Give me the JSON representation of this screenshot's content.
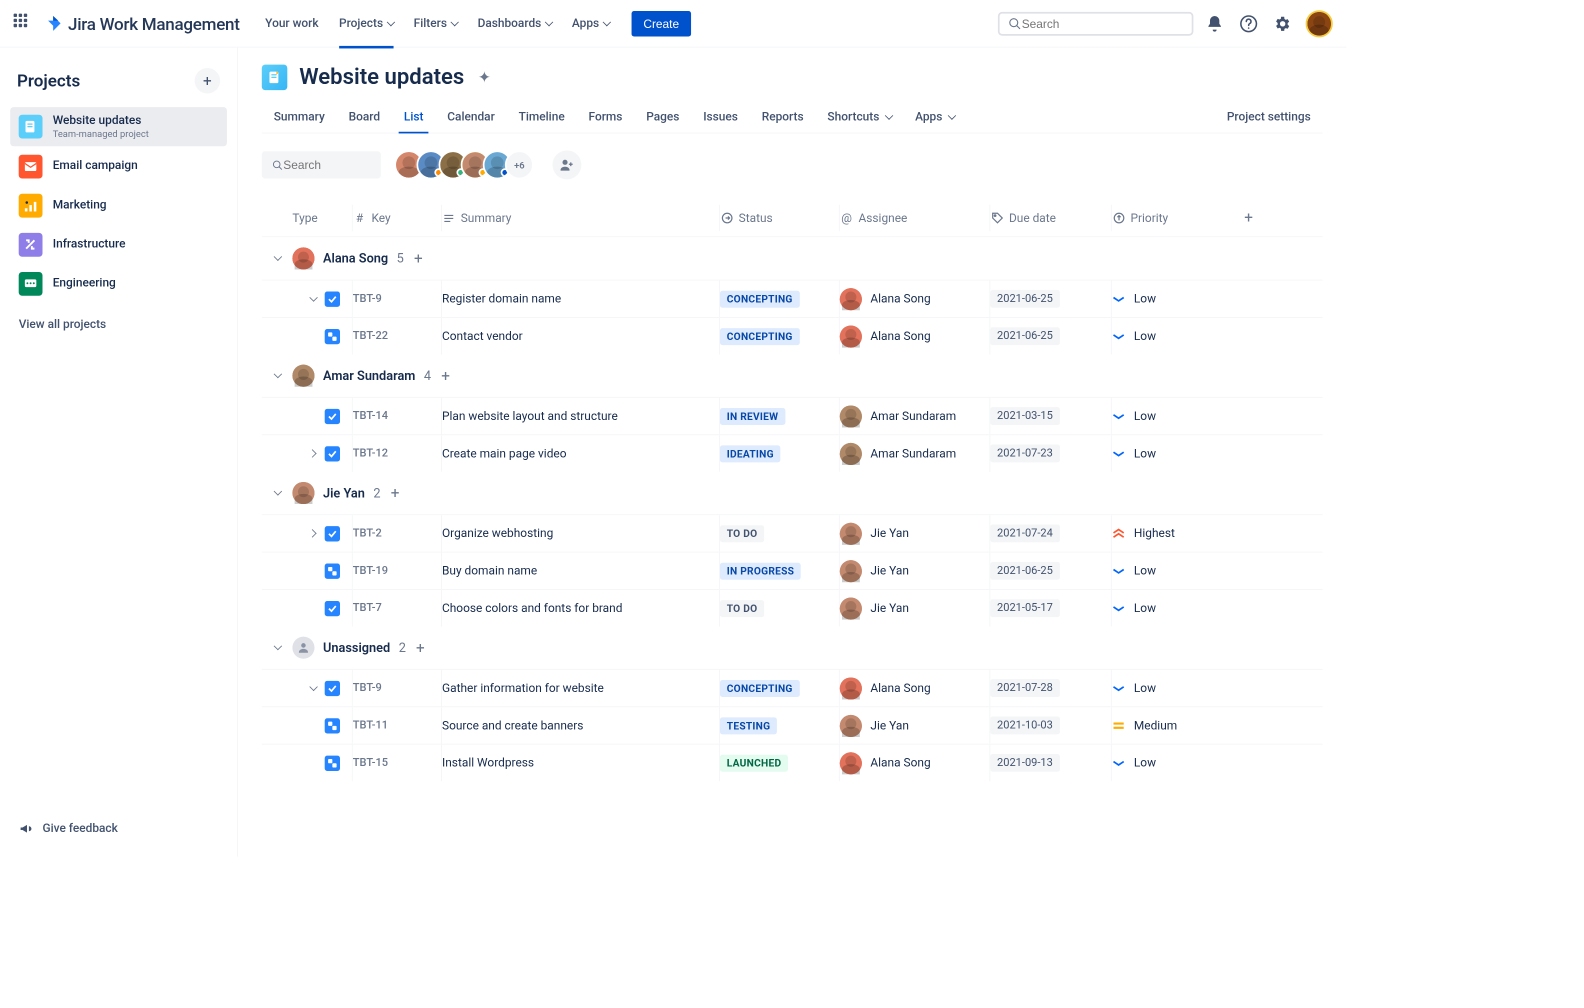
{
  "product_name": "Jira Work Management",
  "topnav": {
    "links": [
      "Your work",
      "Projects",
      "Filters",
      "Dashboards",
      "Apps"
    ],
    "create_label": "Create",
    "search_placeholder": "Search"
  },
  "sidebar": {
    "title": "Projects",
    "projects": [
      {
        "name": "Website updates",
        "sub": "Team-managed project",
        "icon_bg": "#5BCEFA",
        "active": true
      },
      {
        "name": "Email campaign",
        "icon_bg": "#FF5630"
      },
      {
        "name": "Marketing",
        "icon_bg": "#FFAB00"
      },
      {
        "name": "Infrastructure",
        "icon_bg": "#8F7EE7"
      },
      {
        "name": "Engineering",
        "icon_bg": "#00875A"
      }
    ],
    "view_all": "View all projects",
    "feedback": "Give feedback"
  },
  "page": {
    "title": "Website updates",
    "tabs": [
      "Summary",
      "Board",
      "List",
      "Calendar",
      "Timeline",
      "Forms",
      "Pages",
      "Issues",
      "Reports",
      "Shortcuts",
      "Apps",
      "Project settings"
    ],
    "active_tab": "List",
    "search_placeholder": "Search",
    "people_overflow": "+6"
  },
  "columns": {
    "type": "Type",
    "key": "Key",
    "summary": "Summary",
    "status": "Status",
    "assignee": "Assignee",
    "due": "Due date",
    "priority": "Priority"
  },
  "avatar_colors": {
    "alana": "#E2725B",
    "amar": "#B08968",
    "jie": "#C48A6F",
    "yellow": "#f4cd42"
  },
  "status_styles": {
    "CONCEPTING": {
      "bg": "#deebff",
      "color": "#0747a6"
    },
    "IN REVIEW": {
      "bg": "#deebff",
      "color": "#0747a6"
    },
    "IDEATING": {
      "bg": "#deebff",
      "color": "#0747a6"
    },
    "TO DO": {
      "bg": "#f4f5f7",
      "color": "#42526e"
    },
    "IN PROGRESS": {
      "bg": "#deebff",
      "color": "#0747a6"
    },
    "TESTING": {
      "bg": "#deebff",
      "color": "#0747a6"
    },
    "LAUNCHED": {
      "bg": "#e3fcef",
      "color": "#006644"
    }
  },
  "groups": [
    {
      "name": "Alana Song",
      "count": 5,
      "avatar": "alana",
      "rows": [
        {
          "chev": "down",
          "type": "task",
          "key": "TBT-9",
          "summary": "Register domain name",
          "status": "CONCEPTING",
          "assignee": "Alana Song",
          "avatar": "alana",
          "due": "2021-06-25",
          "priority": "Low"
        },
        {
          "chev": "",
          "type": "sub",
          "key": "TBT-22",
          "summary": "Contact vendor",
          "status": "CONCEPTING",
          "assignee": "Alana Song",
          "avatar": "alana",
          "due": "2021-06-25",
          "priority": "Low"
        }
      ]
    },
    {
      "name": "Amar Sundaram",
      "count": 4,
      "avatar": "amar",
      "rows": [
        {
          "chev": "",
          "type": "task",
          "key": "TBT-14",
          "summary": "Plan website layout and structure",
          "status": "IN REVIEW",
          "assignee": "Amar Sundaram",
          "avatar": "amar",
          "due": "2021-03-15",
          "priority": "Low"
        },
        {
          "chev": "right",
          "type": "task",
          "key": "TBT-12",
          "summary": "Create main page video",
          "status": "IDEATING",
          "assignee": "Amar Sundaram",
          "avatar": "amar",
          "due": "2021-07-23",
          "priority": "Low"
        }
      ]
    },
    {
      "name": "Jie Yan",
      "count": 2,
      "avatar": "jie",
      "rows": [
        {
          "chev": "right",
          "type": "task",
          "key": "TBT-2",
          "summary": "Organize webhosting",
          "status": "TO DO",
          "assignee": "Jie Yan",
          "avatar": "jie",
          "due": "2021-07-24",
          "priority": "Highest"
        },
        {
          "chev": "",
          "type": "sub",
          "key": "TBT-19",
          "summary": "Buy domain name",
          "status": "IN PROGRESS",
          "assignee": "Jie Yan",
          "avatar": "jie",
          "due": "2021-06-25",
          "priority": "Low"
        },
        {
          "chev": "",
          "type": "task",
          "key": "TBT-7",
          "summary": "Choose colors and fonts for brand",
          "status": "TO DO",
          "assignee": "Jie Yan",
          "avatar": "jie",
          "due": "2021-05-17",
          "priority": "Low"
        }
      ]
    },
    {
      "name": "Unassigned",
      "count": 2,
      "avatar": "unassigned",
      "rows": [
        {
          "chev": "down",
          "type": "task",
          "key": "TBT-9",
          "summary": "Gather information for website",
          "status": "CONCEPTING",
          "assignee": "Alana Song",
          "avatar": "alana",
          "due": "2021-07-28",
          "priority": "Low"
        },
        {
          "chev": "",
          "type": "sub",
          "key": "TBT-11",
          "summary": "Source and create banners",
          "status": "TESTING",
          "assignee": "Jie Yan",
          "avatar": "jie",
          "due": "2021-10-03",
          "priority": "Medium"
        },
        {
          "chev": "",
          "type": "sub",
          "key": "TBT-15",
          "summary": "Install Wordpress",
          "status": "LAUNCHED",
          "assignee": "Alana Song",
          "avatar": "alana",
          "due": "2021-09-13",
          "priority": "Low"
        }
      ]
    }
  ]
}
